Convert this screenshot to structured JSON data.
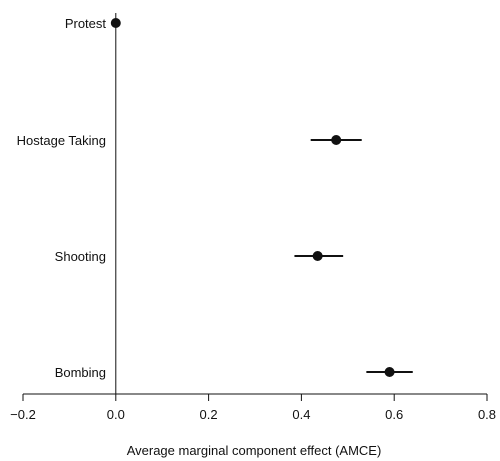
{
  "chart_data": {
    "type": "scatter",
    "title": "",
    "xlabel": "Average marginal component effect (AMCE)",
    "ylabel": "",
    "xlim": [
      -0.2,
      0.8
    ],
    "xticks": [
      -0.2,
      0.0,
      0.2,
      0.4,
      0.6,
      0.8
    ],
    "xtick_labels": [
      "−0.2",
      "0.0",
      "0.2",
      "0.4",
      "0.6",
      "0.8"
    ],
    "reference_line_x": 0.0,
    "grid": false,
    "categories": [
      "Protest",
      "Hostage Taking",
      "Shooting",
      "Bombing"
    ],
    "estimates": [
      {
        "category": "Protest",
        "value": 0.0,
        "ci_low": 0.0,
        "ci_high": 0.0
      },
      {
        "category": "Hostage Taking",
        "value": 0.475,
        "ci_low": 0.42,
        "ci_high": 0.53
      },
      {
        "category": "Shooting",
        "value": 0.435,
        "ci_low": 0.385,
        "ci_high": 0.49
      },
      {
        "category": "Bombing",
        "value": 0.59,
        "ci_low": 0.54,
        "ci_high": 0.64
      }
    ],
    "colors": {
      "point": "#111111",
      "line": "#111111"
    }
  }
}
